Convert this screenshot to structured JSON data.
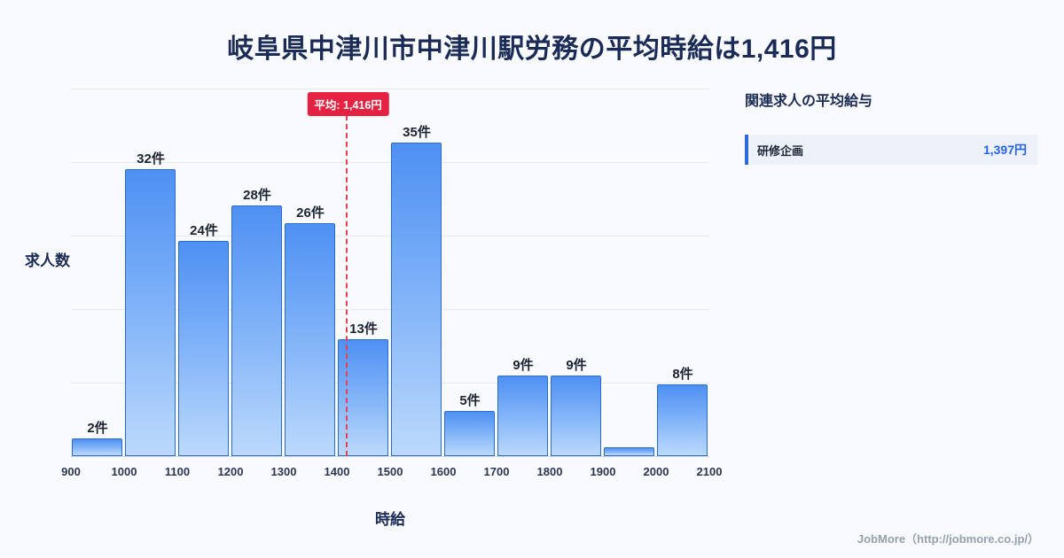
{
  "title": "岐阜県中津川市中津川駅労務の平均時給は1,416円",
  "chart_data": {
    "type": "bar",
    "bin_edges": [
      900,
      1000,
      1100,
      1200,
      1300,
      1400,
      1500,
      1600,
      1700,
      1800,
      1900,
      2000,
      2100
    ],
    "categories": [
      "900-1000",
      "1000-1100",
      "1100-1200",
      "1200-1300",
      "1300-1400",
      "1400-1500",
      "1500-1600",
      "1600-1700",
      "1700-1800",
      "1800-1900",
      "1900-2000",
      "2000-2100"
    ],
    "values": [
      2,
      32,
      24,
      28,
      26,
      13,
      35,
      5,
      9,
      9,
      1,
      8
    ],
    "bar_labels": [
      "2件",
      "32件",
      "24件",
      "28件",
      "26件",
      "13件",
      "35件",
      "5件",
      "9件",
      "9件",
      "",
      "8件"
    ],
    "title": "岐阜県中津川市中津川駅労務の平均時給は1,416円",
    "xlabel": "時給",
    "ylabel": "求人数",
    "ylim": [
      0,
      41
    ],
    "grid": "horizontal",
    "average": {
      "value": 1416,
      "label": "平均: 1,416円"
    },
    "colors": {
      "bar_top": "#4e90f3",
      "bar_bottom": "#bcd9fc",
      "bar_border": "#2a6ccc",
      "average_red": "#e62243",
      "value_blue": "#2563eb"
    }
  },
  "side_panel": {
    "heading": "関連求人の平均給与",
    "rows": [
      {
        "label": "研修企画",
        "value": "1,397円"
      }
    ]
  },
  "footer": {
    "credit": "JobMore（http://jobmore.co.jp/）"
  }
}
